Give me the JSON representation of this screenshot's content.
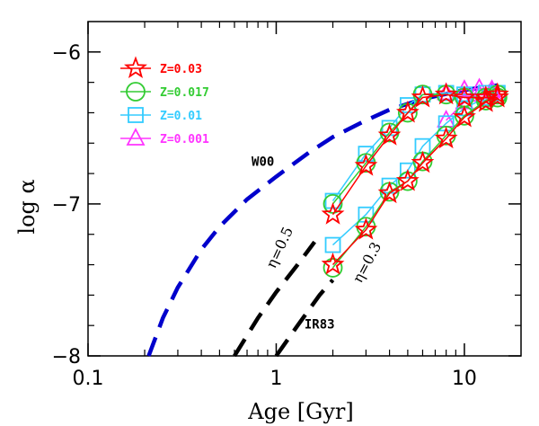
{
  "chart_data": {
    "type": "line",
    "xlabel": "Age [Gyr]",
    "ylabel": "log α",
    "xscale": "log",
    "xlim": [
      0.1,
      20
    ],
    "ylim": [
      -8,
      -5.8
    ],
    "xticks": [
      {
        "value": 0.1,
        "label": "0.1"
      },
      {
        "value": 1,
        "label": "1"
      },
      {
        "value": 10,
        "label": "10"
      }
    ],
    "yticks": [
      {
        "value": -8,
        "label": "−8"
      },
      {
        "value": -7,
        "label": "−7"
      },
      {
        "value": -6,
        "label": "−6"
      }
    ],
    "legend_position": "top-left",
    "series": [
      {
        "name": "Z=0.03",
        "color": "#ff0000",
        "marker": "star",
        "branches": [
          {
            "x": [
              2,
              3,
              4,
              5,
              6,
              8,
              10,
              13,
              15
            ],
            "y": [
              -7.07,
              -6.75,
              -6.55,
              -6.4,
              -6.3,
              -6.28,
              -6.3,
              -6.3,
              -6.3
            ]
          },
          {
            "x": [
              2,
              3,
              4,
              5,
              6,
              8,
              10,
              13,
              15
            ],
            "y": [
              -7.4,
              -7.17,
              -6.93,
              -6.85,
              -6.73,
              -6.57,
              -6.43,
              -6.33,
              -6.28
            ]
          }
        ]
      },
      {
        "name": "Z=0.017",
        "color": "#33cc33",
        "marker": "circle",
        "branches": [
          {
            "x": [
              2,
              3,
              4,
              5,
              6,
              8,
              10,
              13,
              15
            ],
            "y": [
              -7.0,
              -6.73,
              -6.53,
              -6.4,
              -6.28,
              -6.28,
              -6.3,
              -6.3,
              -6.3
            ]
          },
          {
            "x": [
              2,
              3,
              4,
              5,
              6,
              8,
              10,
              13,
              15
            ],
            "y": [
              -7.42,
              -7.15,
              -6.92,
              -6.85,
              -6.72,
              -6.55,
              -6.42,
              -6.32,
              -6.28
            ]
          }
        ]
      },
      {
        "name": "Z=0.01",
        "color": "#33ccff",
        "marker": "square",
        "branches": [
          {
            "x": [
              2,
              3,
              4,
              5,
              6,
              8,
              10,
              13,
              15
            ],
            "y": [
              -6.98,
              -6.67,
              -6.5,
              -6.35,
              -6.28,
              -6.27,
              -6.28,
              -6.27,
              -6.27
            ]
          },
          {
            "x": [
              2,
              3,
              4,
              5,
              6,
              8,
              10,
              13,
              15
            ],
            "y": [
              -7.27,
              -7.07,
              -6.88,
              -6.78,
              -6.62,
              -6.47,
              -6.37,
              -6.3,
              -6.27
            ]
          }
        ]
      },
      {
        "name": "Z=0.001",
        "color": "#ff33ff",
        "marker": "triangle",
        "branches": [
          {
            "x": [
              8,
              10,
              12,
              14
            ],
            "y": [
              -6.27,
              -6.25,
              -6.24,
              -6.25
            ]
          },
          {
            "x": [
              8,
              10,
              12,
              14
            ],
            "y": [
              -6.45,
              -6.33,
              -6.28,
              -6.26
            ]
          }
        ]
      }
    ],
    "curves": [
      {
        "label": "W00",
        "color": "#0000cc",
        "dash": "long",
        "x": [
          0.21,
          0.25,
          0.3,
          0.4,
          0.5,
          0.7,
          1,
          1.5,
          2,
          3,
          4,
          6,
          10,
          15
        ],
        "y": [
          -8.0,
          -7.75,
          -7.55,
          -7.3,
          -7.15,
          -6.97,
          -6.82,
          -6.66,
          -6.56,
          -6.45,
          -6.38,
          -6.31,
          -6.25,
          -6.22
        ]
      },
      {
        "label": "η=0.5",
        "color": "#000000",
        "dash": "long",
        "x": [
          0.6,
          0.8,
          1.0,
          1.3,
          1.6
        ],
        "y": [
          -8.0,
          -7.75,
          -7.58,
          -7.4,
          -7.25
        ]
      },
      {
        "label": "η=0.3",
        "color": "#000000",
        "dash": "long",
        "x": [
          1.0,
          1.3,
          1.7,
          2.0
        ],
        "y": [
          -8.0,
          -7.8,
          -7.6,
          -7.5
        ]
      }
    ],
    "annotations": [
      {
        "text": "W00",
        "x": 0.85,
        "y": -6.75
      },
      {
        "text": "η=0.5",
        "x": 1.1,
        "y": -7.3,
        "rotate": -65
      },
      {
        "text": "η=0.3",
        "x": 3.2,
        "y": -7.4,
        "rotate": -62
      },
      {
        "text": "IR83",
        "x": 1.7,
        "y": -7.82
      }
    ]
  }
}
